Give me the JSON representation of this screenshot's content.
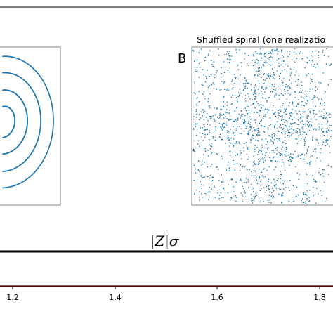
{
  "colors": {
    "points": "#1f77b4",
    "axes": "#000000",
    "frame": "#888888",
    "red_line": "#8b1a1a"
  },
  "panels": [
    {
      "label": "",
      "title": ""
    },
    {
      "label": "B",
      "title": "Shuffled spiral (one realizatio"
    }
  ],
  "bottom_title": "|Z|σ",
  "chart_data": [
    {
      "type": "scatter",
      "title": "",
      "description_kind": "spiral",
      "spiral": {
        "turns": 3,
        "center": [
          -0.95,
          0.0
        ],
        "arms_visible": "right side only"
      },
      "grid": false
    },
    {
      "type": "scatter",
      "title": "Shuffled spiral (one realizatio",
      "grid": false
    },
    {
      "type": "line",
      "title": "|Z|σ",
      "x_ticks": [
        "1.2",
        "1.4",
        "1.6",
        "1.8"
      ],
      "xlim": [
        1.07,
        1.89
      ],
      "series": [
        {
          "values": [
            0,
            0
          ]
        }
      ],
      "grid": false
    }
  ]
}
